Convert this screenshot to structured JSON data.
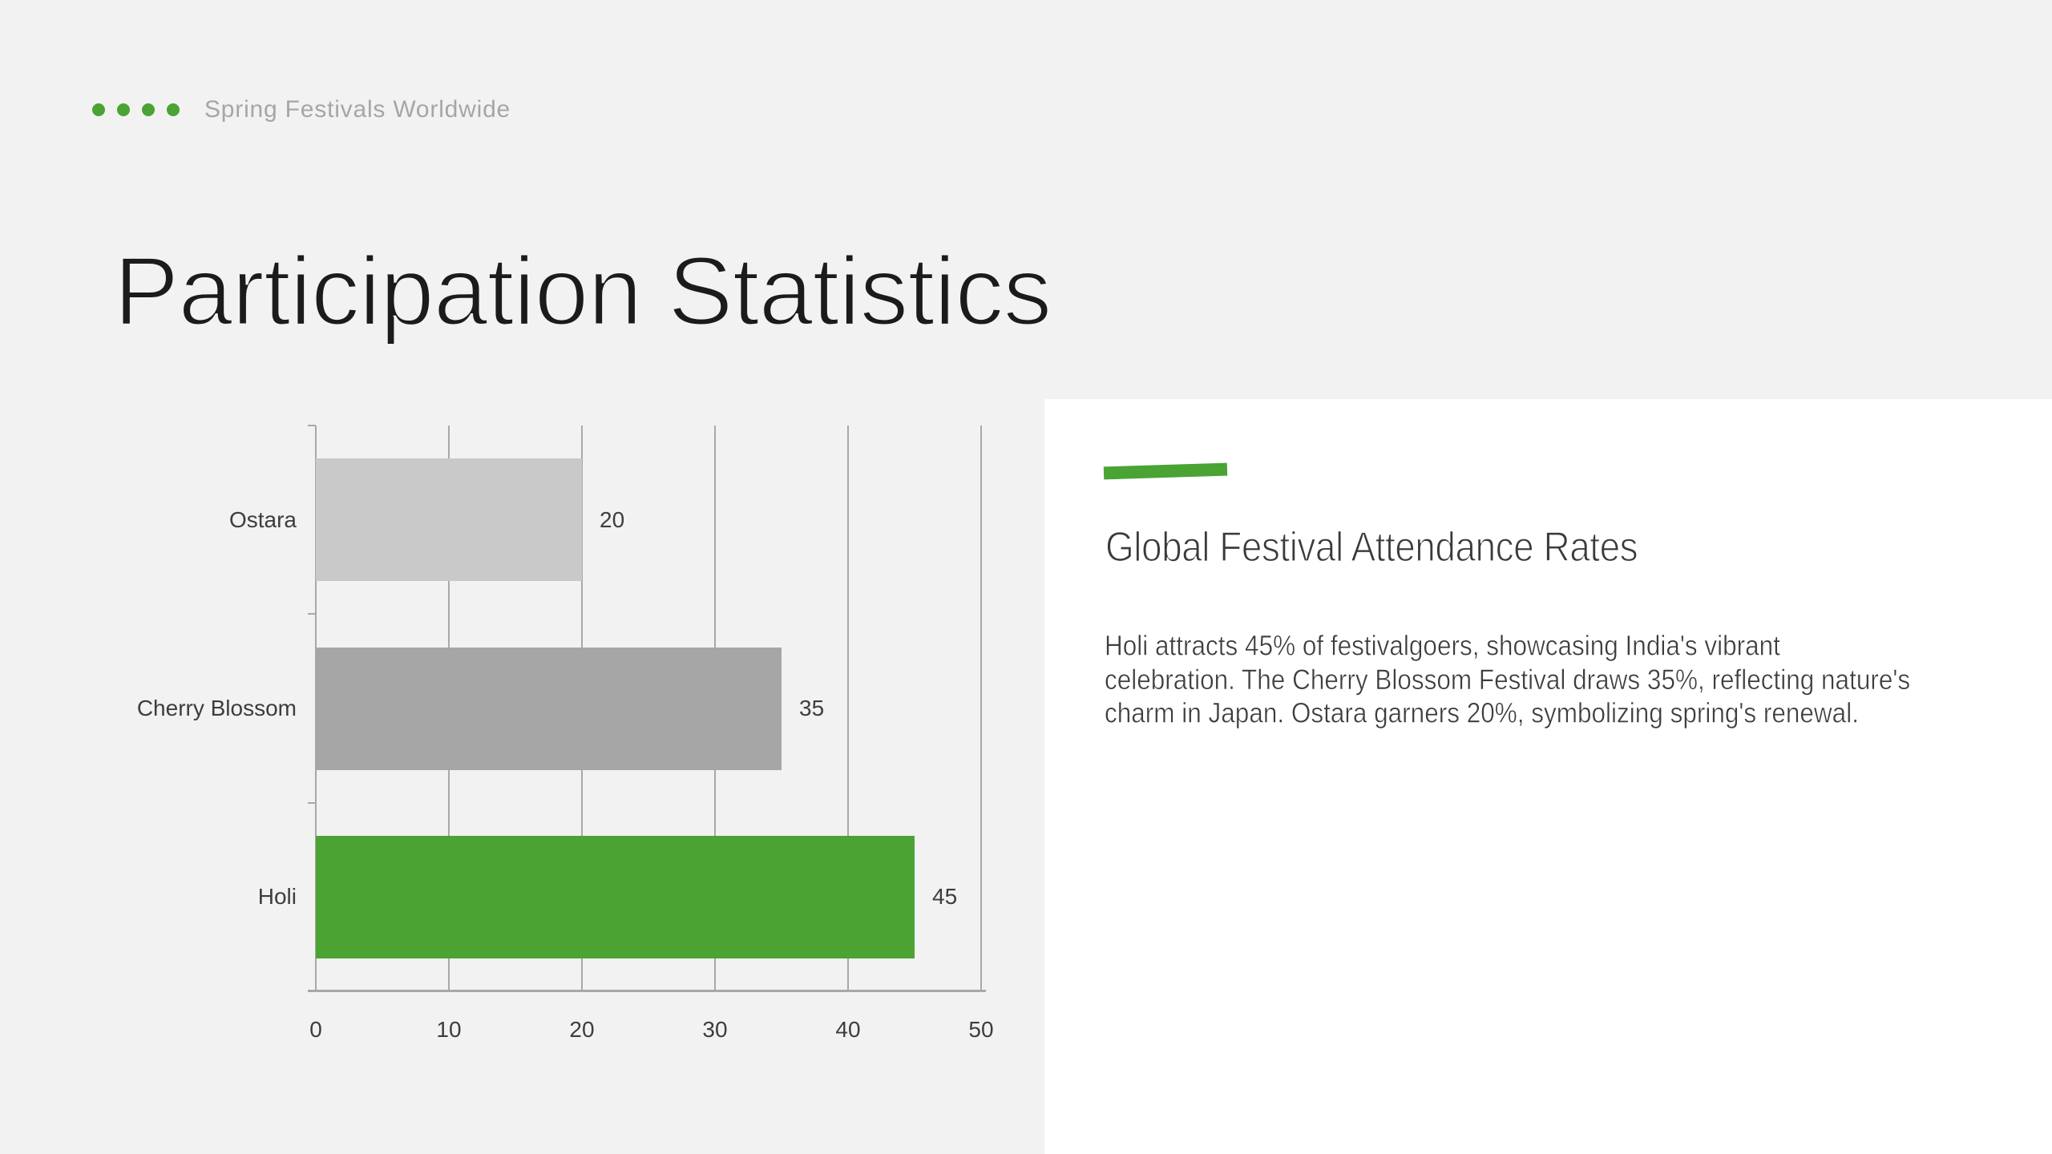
{
  "header": {
    "kicker": "Spring Festivals Worldwide"
  },
  "title": "Participation Statistics",
  "panel": {
    "heading": "Global Festival Attendance Rates",
    "body": "Holi attracts 45% of festivalgoers, showcasing India's vibrant\ncelebration. The Cherry Blossom Festival draws 35%, reflecting nature's\ncharm in Japan. Ostara garners 20%, symbolizing spring's renewal."
  },
  "colors": {
    "background": "#F2F2F2",
    "panel_background": "#FFFFFF",
    "accent_green": "#4AA333",
    "kicker_text": "#A6A6A6",
    "title_text": "#1B1B1B",
    "body_text": "#3D3D3D",
    "axis_gray": "#A8A8A8"
  },
  "chart_data": {
    "type": "bar",
    "orientation": "horizontal",
    "title": "",
    "categories": [
      "Ostara",
      "Cherry Blossom",
      "Holi"
    ],
    "values": [
      20,
      35,
      45
    ],
    "bar_colors": [
      "#C9C9C9",
      "#A6A6A6",
      "#4AA333"
    ],
    "value_labels": [
      "20",
      "35",
      "45"
    ],
    "xticks": [
      0,
      10,
      20,
      30,
      40,
      50
    ],
    "xlim": [
      0,
      50
    ],
    "grid": true,
    "legend": false
  }
}
